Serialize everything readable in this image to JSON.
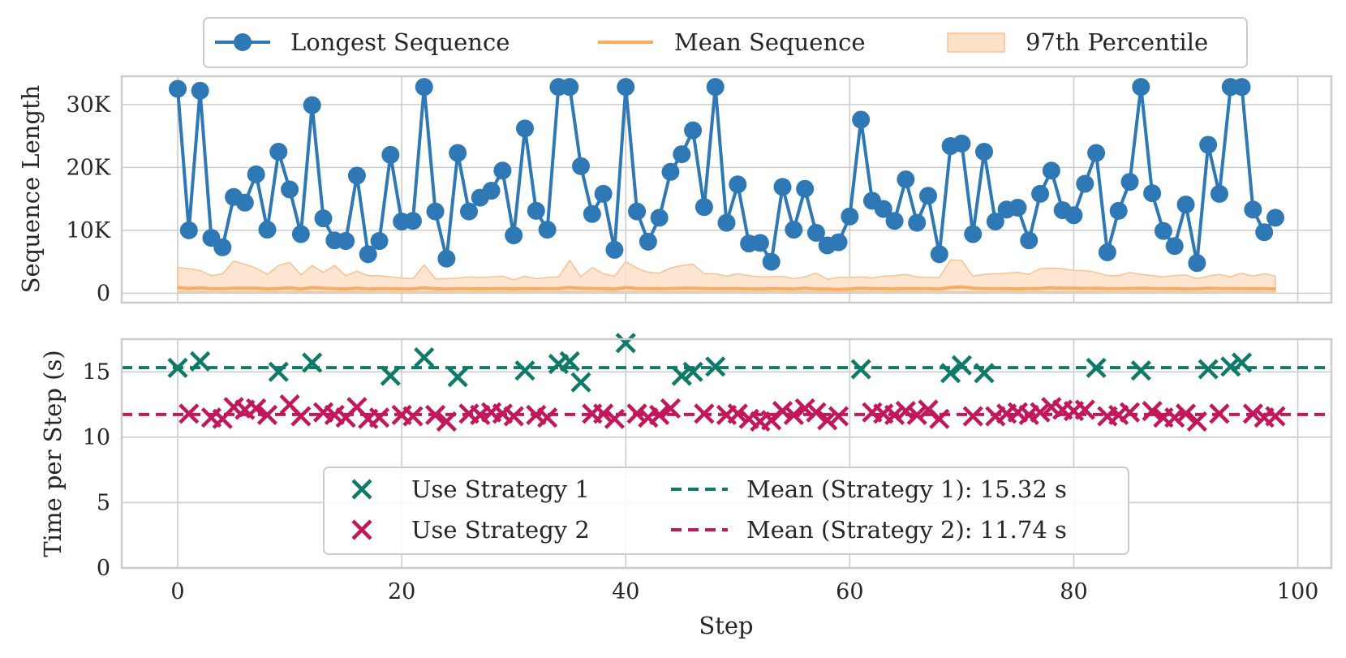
{
  "chart_data": [
    {
      "type": "line",
      "title": "",
      "xlabel": "",
      "ylabel": "Sequence Length",
      "xlim": [
        -5,
        103
      ],
      "ylim": [
        -1500,
        34500
      ],
      "yticks": [
        0,
        10000,
        20000,
        30000
      ],
      "ytick_labels": [
        "0",
        "10K",
        "20K",
        "30K"
      ],
      "legend": {
        "placement": "top-center",
        "entries": [
          "Longest Sequence",
          "Mean Sequence",
          "97th Percentile"
        ]
      },
      "colors": {
        "longest": "#2e78b5",
        "mean": "#fbab5f",
        "band": "#fde2c9",
        "band_edge": "#fbc190"
      },
      "series": [
        {
          "name": "Longest Sequence",
          "x": [
            0,
            1,
            2,
            3,
            4,
            5,
            6,
            7,
            8,
            9,
            10,
            11,
            12,
            13,
            14,
            15,
            16,
            17,
            18,
            19,
            20,
            21,
            22,
            23,
            24,
            25,
            26,
            27,
            28,
            29,
            30,
            31,
            32,
            33,
            34,
            35,
            36,
            37,
            38,
            39,
            40,
            41,
            42,
            43,
            44,
            45,
            46,
            47,
            48,
            49,
            50,
            51,
            52,
            53,
            54,
            55,
            56,
            57,
            58,
            59,
            60,
            61,
            62,
            63,
            64,
            65,
            66,
            67,
            68,
            69,
            70,
            71,
            72,
            73,
            74,
            75,
            76,
            77,
            78,
            79,
            80,
            81,
            82,
            83,
            84,
            85,
            86,
            87,
            88,
            89,
            90,
            91,
            92,
            93,
            94,
            95,
            96,
            97,
            98
          ],
          "values": [
            32500,
            10000,
            32200,
            8800,
            7300,
            15300,
            14400,
            18900,
            10100,
            22500,
            16500,
            9400,
            29900,
            11900,
            8400,
            8300,
            18700,
            6200,
            8300,
            22000,
            11400,
            11500,
            32800,
            13000,
            5500,
            22300,
            13000,
            15200,
            16300,
            19500,
            9200,
            26200,
            13100,
            10100,
            32800,
            32800,
            20200,
            12600,
            15800,
            6900,
            32800,
            13000,
            8200,
            12000,
            19300,
            22100,
            25900,
            13700,
            32800,
            11200,
            17300,
            7900,
            8000,
            5000,
            16900,
            10100,
            16600,
            9600,
            7600,
            8100,
            12200,
            27600,
            14700,
            13400,
            11500,
            18100,
            11200,
            15500,
            6200,
            23400,
            23800,
            9400,
            22500,
            11400,
            13300,
            13600,
            8400,
            15800,
            19500,
            13200,
            12400,
            17400,
            22300,
            6500,
            13100,
            17700,
            32800,
            15900,
            9900,
            7500,
            14100,
            4800,
            23600,
            15800,
            32800,
            32800,
            13300,
            9700,
            12000
          ]
        },
        {
          "name": "Mean Sequence",
          "x": [
            0,
            1,
            2,
            3,
            4,
            5,
            6,
            7,
            8,
            9,
            10,
            11,
            12,
            13,
            14,
            15,
            16,
            17,
            18,
            19,
            20,
            21,
            22,
            23,
            24,
            25,
            26,
            27,
            28,
            29,
            30,
            31,
            32,
            33,
            34,
            35,
            36,
            37,
            38,
            39,
            40,
            41,
            42,
            43,
            44,
            45,
            46,
            47,
            48,
            49,
            50,
            51,
            52,
            53,
            54,
            55,
            56,
            57,
            58,
            59,
            60,
            61,
            62,
            63,
            64,
            65,
            66,
            67,
            68,
            69,
            70,
            71,
            72,
            73,
            74,
            75,
            76,
            77,
            78,
            79,
            80,
            81,
            82,
            83,
            84,
            85,
            86,
            87,
            88,
            89,
            90,
            91,
            92,
            93,
            94,
            95,
            96,
            97,
            98
          ],
          "values": [
            900,
            750,
            850,
            700,
            700,
            800,
            780,
            800,
            650,
            750,
            850,
            650,
            900,
            800,
            700,
            650,
            780,
            650,
            700,
            700,
            680,
            690,
            850,
            700,
            650,
            700,
            700,
            680,
            700,
            720,
            680,
            720,
            700,
            700,
            750,
            900,
            800,
            750,
            700,
            650,
            900,
            750,
            700,
            700,
            750,
            780,
            800,
            750,
            700,
            720,
            750,
            680,
            650,
            700,
            700,
            650,
            780,
            650,
            650,
            600,
            650,
            780,
            700,
            700,
            680,
            720,
            700,
            720,
            650,
            900,
            1000,
            800,
            720,
            720,
            700,
            680,
            720,
            750,
            850,
            800,
            780,
            750,
            780,
            700,
            720,
            750,
            800,
            750,
            700,
            720,
            680,
            680,
            780,
            750,
            700,
            720,
            750,
            720,
            650
          ]
        },
        {
          "name": "97th Percentile",
          "x": [
            0,
            1,
            2,
            3,
            4,
            5,
            6,
            7,
            8,
            9,
            10,
            11,
            12,
            13,
            14,
            15,
            16,
            17,
            18,
            19,
            20,
            21,
            22,
            23,
            24,
            25,
            26,
            27,
            28,
            29,
            30,
            31,
            32,
            33,
            34,
            35,
            36,
            37,
            38,
            39,
            40,
            41,
            42,
            43,
            44,
            45,
            46,
            47,
            48,
            49,
            50,
            51,
            52,
            53,
            54,
            55,
            56,
            57,
            58,
            59,
            60,
            61,
            62,
            63,
            64,
            65,
            66,
            67,
            68,
            69,
            70,
            71,
            72,
            73,
            74,
            75,
            76,
            77,
            78,
            79,
            80,
            81,
            82,
            83,
            84,
            85,
            86,
            87,
            88,
            89,
            90,
            91,
            92,
            93,
            94,
            95,
            96,
            97,
            98
          ],
          "lower": [
            200,
            200,
            200,
            200,
            200,
            200,
            200,
            200,
            200,
            200,
            200,
            200,
            200,
            200,
            200,
            200,
            200,
            200,
            200,
            200,
            200,
            200,
            200,
            200,
            200,
            200,
            200,
            200,
            200,
            200,
            200,
            200,
            200,
            200,
            200,
            200,
            200,
            200,
            200,
            200,
            200,
            200,
            200,
            200,
            200,
            200,
            200,
            200,
            200,
            200,
            200,
            200,
            200,
            200,
            200,
            200,
            200,
            200,
            200,
            200,
            200,
            200,
            200,
            200,
            200,
            200,
            200,
            200,
            200,
            200,
            200,
            200,
            200,
            200,
            200,
            200,
            200,
            200,
            200,
            200,
            200,
            200,
            200,
            200,
            200,
            200,
            200,
            200,
            200,
            200,
            200,
            200,
            200,
            200,
            200,
            200,
            200,
            200,
            200
          ],
          "upper": [
            4100,
            3900,
            3600,
            2800,
            3100,
            5100,
            4600,
            4000,
            3000,
            4400,
            4900,
            2900,
            4400,
            3300,
            4400,
            2800,
            3500,
            2800,
            2800,
            2600,
            2400,
            2300,
            4500,
            2300,
            2300,
            2400,
            2600,
            2500,
            2600,
            2700,
            2100,
            2700,
            2300,
            2500,
            2600,
            5200,
            2600,
            4100,
            3100,
            2700,
            5000,
            4000,
            3300,
            3200,
            4000,
            4400,
            4600,
            3100,
            3100,
            2700,
            3100,
            2800,
            2600,
            2600,
            2700,
            2300,
            2600,
            3200,
            2200,
            2500,
            2500,
            2600,
            2400,
            2700,
            2800,
            3000,
            2600,
            2500,
            2500,
            5300,
            5200,
            2700,
            3000,
            3100,
            3200,
            3300,
            3000,
            3900,
            4000,
            3900,
            3600,
            3600,
            3300,
            2800,
            2800,
            3300,
            3000,
            2800,
            2600,
            2800,
            2900,
            2300,
            2700,
            3000,
            2600,
            3200,
            2700,
            3100,
            2700
          ]
        }
      ]
    },
    {
      "type": "scatter",
      "title": "",
      "xlabel": "Step",
      "ylabel": "Time per Step (s)",
      "xlim": [
        -5,
        103
      ],
      "ylim": [
        0,
        17.5
      ],
      "xticks": [
        0,
        20,
        40,
        60,
        80,
        100
      ],
      "yticks": [
        0,
        5,
        10,
        15
      ],
      "legend": {
        "placement": "lower-center",
        "entries": [
          "Use Strategy 1",
          "Use Strategy 2",
          "Mean (Strategy 1): 15.32 s",
          "Mean (Strategy 2): 11.74 s"
        ]
      },
      "colors": {
        "s1": "#0f7a68",
        "s2": "#c2185b"
      },
      "series": [
        {
          "name": "Use Strategy 1",
          "x": [
            0,
            2,
            9,
            12,
            19,
            22,
            25,
            31,
            34,
            35,
            36,
            40,
            45,
            46,
            48,
            61,
            69,
            70,
            72,
            82,
            86,
            92,
            94,
            95
          ],
          "values": [
            15.3,
            15.8,
            15.0,
            15.7,
            14.7,
            16.1,
            14.6,
            15.1,
            15.6,
            15.8,
            14.2,
            17.2,
            14.7,
            15.0,
            15.4,
            15.2,
            14.9,
            15.5,
            14.9,
            15.3,
            15.1,
            15.2,
            15.4,
            15.7
          ]
        },
        {
          "name": "Use Strategy 2",
          "x": [
            1,
            3,
            4,
            5,
            6,
            7,
            8,
            10,
            11,
            13,
            14,
            15,
            16,
            17,
            18,
            20,
            21,
            23,
            24,
            26,
            27,
            28,
            29,
            30,
            32,
            33,
            37,
            38,
            39,
            41,
            42,
            43,
            44,
            47,
            49,
            50,
            51,
            52,
            53,
            54,
            55,
            56,
            57,
            58,
            59,
            62,
            63,
            64,
            65,
            66,
            67,
            68,
            71,
            73,
            74,
            75,
            76,
            77,
            78,
            79,
            80,
            81,
            83,
            84,
            85,
            87,
            88,
            89,
            90,
            91,
            93,
            96,
            97,
            98
          ],
          "values": [
            11.8,
            11.5,
            11.4,
            12.3,
            12.1,
            12.2,
            11.7,
            12.5,
            11.6,
            11.9,
            11.7,
            11.5,
            12.3,
            11.4,
            11.5,
            11.7,
            11.6,
            11.7,
            11.2,
            11.8,
            11.7,
            11.9,
            11.8,
            11.6,
            11.7,
            11.5,
            11.8,
            11.8,
            11.4,
            11.8,
            11.5,
            11.7,
            12.2,
            11.8,
            11.7,
            11.8,
            11.4,
            11.2,
            11.3,
            12.0,
            11.7,
            12.2,
            11.9,
            11.3,
            11.6,
            11.9,
            11.8,
            11.7,
            12.0,
            11.7,
            12.1,
            11.4,
            11.6,
            11.6,
            11.8,
            11.9,
            11.7,
            11.9,
            12.3,
            12.1,
            12.0,
            12.1,
            11.6,
            11.7,
            11.9,
            12.0,
            11.5,
            11.5,
            11.8,
            11.2,
            11.8,
            11.8,
            11.5,
            11.6
          ]
        },
        {
          "name": "Mean (Strategy 1): 15.32 s",
          "value": 15.32
        },
        {
          "name": "Mean (Strategy 2): 11.74 s",
          "value": 11.74
        }
      ]
    }
  ]
}
